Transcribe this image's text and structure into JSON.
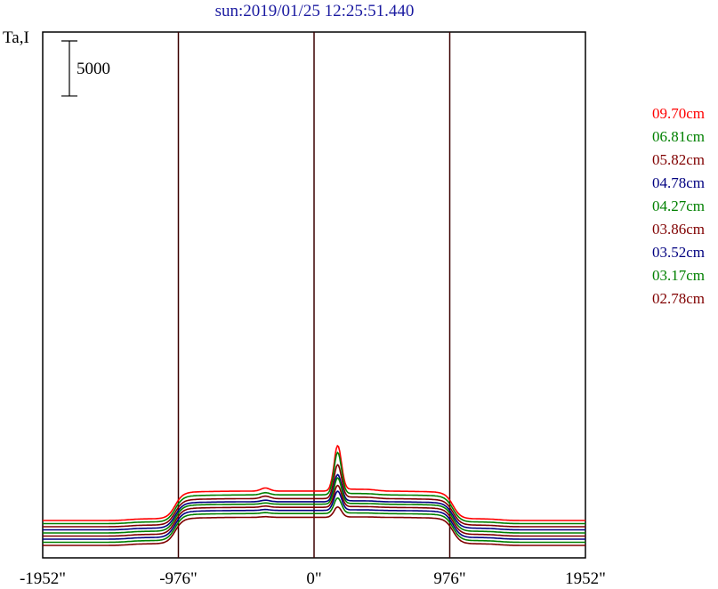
{
  "chart_data": {
    "type": "line",
    "title": "sun:2019/01/25 12:25:51.440",
    "ylabel": "Ta,I",
    "xlabel": "",
    "x_ticks": [
      "-1952\"",
      "-976\"",
      "0\"",
      "976\"",
      "1952\""
    ],
    "x_tick_values": [
      -1952,
      -976,
      0,
      976,
      1952
    ],
    "xlim": [
      -1952,
      1952
    ],
    "vertical_lines": [
      -976,
      0,
      976
    ],
    "scale_bar": {
      "label": "5000",
      "value": 5000
    },
    "grid": false,
    "legend_position": "right",
    "series": [
      {
        "name": "09.70cm",
        "color": "#ff0000",
        "baseline": 4000,
        "disk": 8500,
        "peak": 15500,
        "bump": 500
      },
      {
        "name": "06.81cm",
        "color": "#008000",
        "baseline": 3500,
        "disk": 7900,
        "peak": 14500,
        "bump": 350
      },
      {
        "name": "05.82cm",
        "color": "#800000",
        "baseline": 3000,
        "disk": 7300,
        "peak": 12500,
        "bump": 400
      },
      {
        "name": "04.78cm",
        "color": "#000080",
        "baseline": 2500,
        "disk": 6800,
        "peak": 11000,
        "bump": 250
      },
      {
        "name": "04.27cm",
        "color": "#008000",
        "baseline": 2000,
        "disk": 6400,
        "peak": 10500,
        "bump": 200
      },
      {
        "name": "03.86cm",
        "color": "#800000",
        "baseline": 1500,
        "disk": 5900,
        "peak": 9300,
        "bump": 200
      },
      {
        "name": "03.52cm",
        "color": "#000080",
        "baseline": 1000,
        "disk": 5400,
        "peak": 8400,
        "bump": 150
      },
      {
        "name": "03.17cm",
        "color": "#008000",
        "baseline": 500,
        "disk": 4900,
        "peak": 7300,
        "bump": 150
      },
      {
        "name": "02.78cm",
        "color": "#800000",
        "baseline": 0,
        "disk": 4300,
        "peak": 5900,
        "bump": 100
      }
    ]
  }
}
